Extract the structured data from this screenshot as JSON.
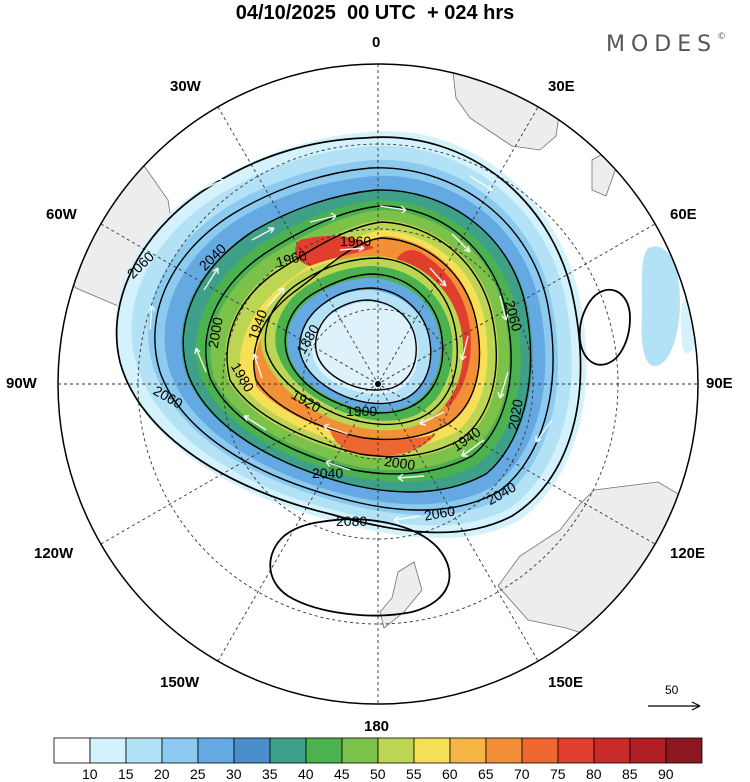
{
  "header": {
    "title": "04/10/2025  00 UTC  + 024 hrs",
    "brand": "MODES",
    "brand_mark": "©"
  },
  "longitude_labels": {
    "top": "0",
    "e30": "30E",
    "e60": "60E",
    "e90": "90E",
    "e120": "120E",
    "e150": "150E",
    "bottom": "180",
    "w150": "150W",
    "w120": "120W",
    "w90": "90W",
    "w60": "60W",
    "w30": "30W"
  },
  "contour_labels": {
    "c1": "1880",
    "c2": "1900",
    "c3": "1920",
    "c4": "1940",
    "c5": "1940",
    "c6": "1960",
    "c7": "1960",
    "c8": "1980",
    "c9": "2000",
    "c10": "2000",
    "c11": "2020",
    "c12": "2040",
    "c13": "2040",
    "c14": "2040",
    "c15": "2060",
    "c16": "2060",
    "c17": "2060",
    "c18": "2060",
    "c19": "2080"
  },
  "vector_reference": {
    "label": "50"
  },
  "colorbar": {
    "labels": [
      "10",
      "15",
      "20",
      "25",
      "30",
      "35",
      "40",
      "45",
      "50",
      "55",
      "60",
      "65",
      "70",
      "75",
      "80",
      "85",
      "90"
    ],
    "colors": [
      "#ffffff",
      "#d3f2fb",
      "#b3e2f6",
      "#8ccaf0",
      "#64a9e2",
      "#4b8ecc",
      "#3fa08a",
      "#4cb14f",
      "#7cc24a",
      "#bcd653",
      "#f7e057",
      "#f6b445",
      "#f38f36",
      "#ee6730",
      "#e03f2d",
      "#c82a2a",
      "#b01e26",
      "#8c1721"
    ]
  },
  "colors": {
    "land": "#ededed",
    "jet_light": "#b3e2f6",
    "jet_mid": "#64a9e2",
    "jet_core": "#e03f2d"
  }
}
